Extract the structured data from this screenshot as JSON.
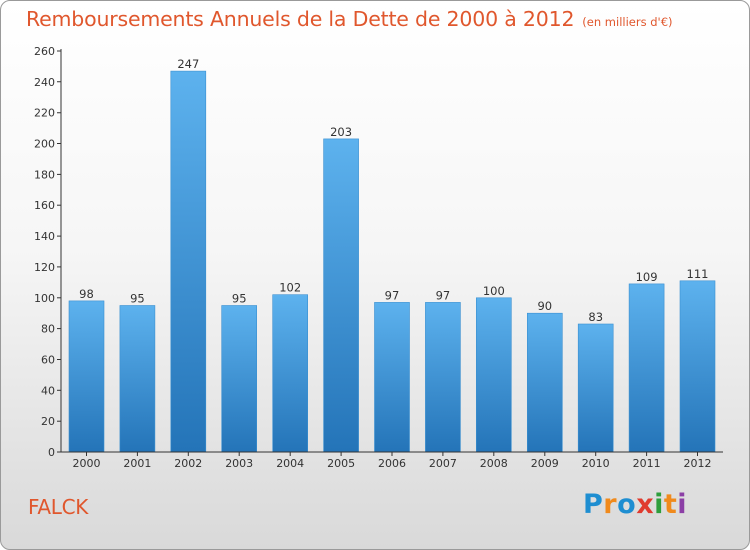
{
  "page": {
    "commune": "FALCK",
    "logo_text": "Proxiti"
  },
  "colors": {
    "title": "#e0572d",
    "bar_light": "#5db2ee",
    "bar_dark": "#2474b8",
    "axis": "#333333"
  },
  "chart_data": {
    "type": "bar",
    "title": "Remboursements Annuels de la Dette de 2000 à 2012",
    "subtitle": "(en milliers d'€)",
    "xlabel": "",
    "ylabel": "",
    "categories": [
      "2000",
      "2001",
      "2002",
      "2003",
      "2004",
      "2005",
      "2006",
      "2007",
      "2008",
      "2009",
      "2010",
      "2011",
      "2012"
    ],
    "values": [
      98,
      95,
      247,
      95,
      102,
      203,
      97,
      97,
      100,
      90,
      83,
      109,
      111
    ],
    "ylim": [
      0,
      260
    ],
    "yticks": [
      0,
      20,
      40,
      60,
      80,
      100,
      120,
      140,
      160,
      180,
      200,
      220,
      240,
      260
    ],
    "grid": false,
    "legend": "none"
  }
}
